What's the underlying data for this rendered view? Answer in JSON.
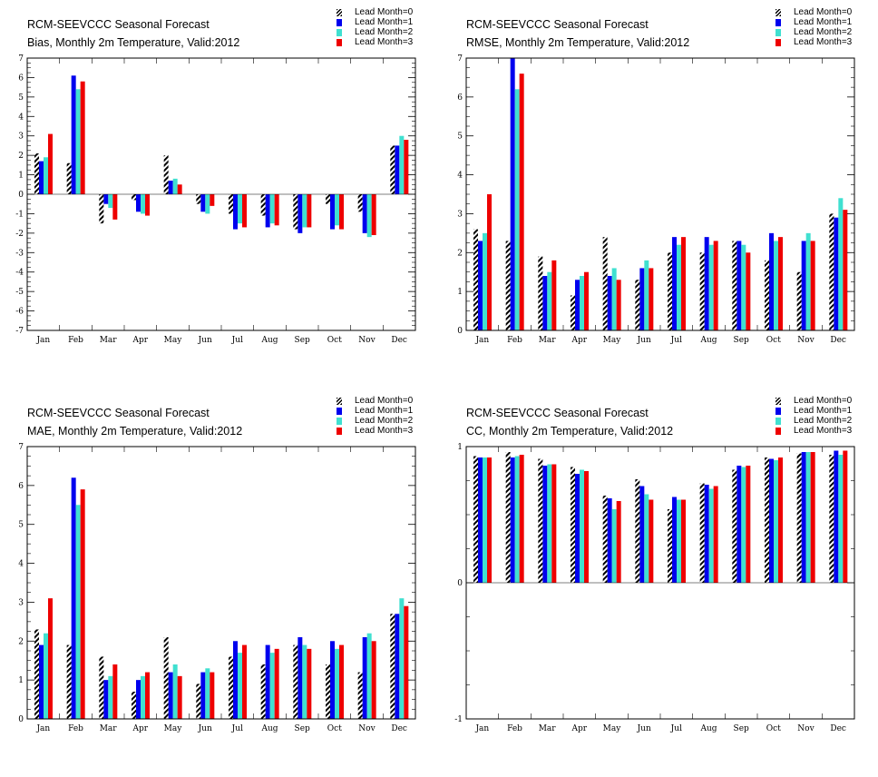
{
  "colors": {
    "lead1": "#0000ee",
    "lead2": "#40e0d0",
    "lead3": "#ee0000"
  },
  "legend": [
    "Lead Month=0",
    "Lead Month=1",
    "Lead Month=2",
    "Lead Month=3"
  ],
  "chart_data": [
    {
      "type": "bar",
      "title": "RCM-SEEVCCC Seasonal Forecast",
      "subtitle": "Bias, Monthly 2m Temperature, Valid:2012",
      "categories": [
        "Jan",
        "Feb",
        "Mar",
        "Apr",
        "May",
        "Jun",
        "Jul",
        "Aug",
        "Sep",
        "Oct",
        "Nov",
        "Dec"
      ],
      "ylim": [
        -7,
        7
      ],
      "yticks": [
        -7,
        -6,
        -5,
        -4,
        -3,
        -2,
        -1,
        0,
        1,
        2,
        3,
        4,
        5,
        6,
        7
      ],
      "ytick_labels": [
        "-7",
        "-6",
        "-5",
        "-4",
        "-3",
        "-2",
        "-1",
        "0",
        "1",
        "2",
        "3",
        "4",
        "5",
        "6",
        "7"
      ],
      "series": [
        {
          "name": "Lead Month=0",
          "values": [
            2.1,
            1.6,
            -1.5,
            -0.3,
            2.0,
            -0.5,
            -1.0,
            -1.1,
            -1.8,
            -0.5,
            -0.9,
            2.5
          ]
        },
        {
          "name": "Lead Month=1",
          "values": [
            1.7,
            6.1,
            -0.5,
            -0.9,
            0.7,
            -0.9,
            -1.8,
            -1.7,
            -2.0,
            -1.8,
            -2.0,
            2.5
          ]
        },
        {
          "name": "Lead Month=2",
          "values": [
            1.9,
            5.4,
            -0.7,
            -1.0,
            0.8,
            -1.0,
            -1.5,
            -1.5,
            -1.7,
            -1.6,
            -2.2,
            3.0
          ]
        },
        {
          "name": "Lead Month=3",
          "values": [
            3.1,
            5.8,
            -1.3,
            -1.1,
            0.5,
            -0.6,
            -1.7,
            -1.6,
            -1.7,
            -1.8,
            -2.1,
            2.8
          ]
        }
      ]
    },
    {
      "type": "bar",
      "title": "RCM-SEEVCCC Seasonal Forecast",
      "subtitle": "RMSE, Monthly 2m Temperature, Valid:2012",
      "categories": [
        "Jan",
        "Feb",
        "Mar",
        "Apr",
        "May",
        "Jun",
        "Jul",
        "Aug",
        "Sep",
        "Oct",
        "Nov",
        "Dec"
      ],
      "ylim": [
        0,
        7
      ],
      "yticks": [
        0,
        1,
        2,
        3,
        4,
        5,
        6,
        7
      ],
      "ytick_labels": [
        "0",
        "1",
        "2",
        "3",
        "4",
        "5",
        "6",
        "7"
      ],
      "series": [
        {
          "name": "Lead Month=0",
          "values": [
            2.6,
            2.3,
            1.9,
            0.9,
            2.4,
            1.3,
            2.0,
            2.0,
            2.3,
            1.8,
            1.5,
            3.0
          ]
        },
        {
          "name": "Lead Month=1",
          "values": [
            2.3,
            7.0,
            1.4,
            1.3,
            1.4,
            1.6,
            2.4,
            2.4,
            2.3,
            2.5,
            2.3,
            2.9
          ]
        },
        {
          "name": "Lead Month=2",
          "values": [
            2.5,
            6.2,
            1.5,
            1.4,
            1.6,
            1.8,
            2.2,
            2.2,
            2.2,
            2.3,
            2.5,
            3.4
          ]
        },
        {
          "name": "Lead Month=3",
          "values": [
            3.5,
            6.6,
            1.8,
            1.5,
            1.3,
            1.6,
            2.4,
            2.3,
            2.0,
            2.4,
            2.3,
            3.1
          ]
        }
      ]
    },
    {
      "type": "bar",
      "title": "RCM-SEEVCCC Seasonal Forecast",
      "subtitle": "MAE, Monthly 2m Temperature, Valid:2012",
      "categories": [
        "Jan",
        "Feb",
        "Mar",
        "Apr",
        "May",
        "Jun",
        "Jul",
        "Aug",
        "Sep",
        "Oct",
        "Nov",
        "Dec"
      ],
      "ylim": [
        0,
        7
      ],
      "yticks": [
        0,
        1,
        2,
        3,
        4,
        5,
        6,
        7
      ],
      "ytick_labels": [
        "0",
        "1",
        "2",
        "3",
        "4",
        "5",
        "6",
        "7"
      ],
      "series": [
        {
          "name": "Lead Month=0",
          "values": [
            2.3,
            1.9,
            1.6,
            0.7,
            2.1,
            0.9,
            1.6,
            1.4,
            1.9,
            1.4,
            1.2,
            2.7
          ]
        },
        {
          "name": "Lead Month=1",
          "values": [
            1.9,
            6.2,
            1.0,
            1.0,
            1.2,
            1.2,
            2.0,
            1.9,
            2.1,
            2.0,
            2.1,
            2.7
          ]
        },
        {
          "name": "Lead Month=2",
          "values": [
            2.2,
            5.5,
            1.1,
            1.1,
            1.4,
            1.3,
            1.7,
            1.7,
            1.9,
            1.8,
            2.2,
            3.1
          ]
        },
        {
          "name": "Lead Month=3",
          "values": [
            3.1,
            5.9,
            1.4,
            1.2,
            1.1,
            1.2,
            1.9,
            1.8,
            1.8,
            1.9,
            2.0,
            2.9
          ]
        }
      ]
    },
    {
      "type": "bar",
      "title": "RCM-SEEVCCC Seasonal Forecast",
      "subtitle": "CC, Monthly 2m Temperature, Valid:2012",
      "categories": [
        "Jan",
        "Feb",
        "Mar",
        "Apr",
        "May",
        "Jun",
        "Jul",
        "Aug",
        "Sep",
        "Oct",
        "Nov",
        "Dec"
      ],
      "ylim": [
        -1,
        1
      ],
      "yticks": [
        -1,
        0,
        1
      ],
      "ytick_labels": [
        "-1",
        "0",
        "1"
      ],
      "series": [
        {
          "name": "Lead Month=0",
          "values": [
            0.93,
            0.96,
            0.91,
            0.85,
            0.64,
            0.76,
            0.54,
            0.73,
            0.83,
            0.92,
            0.95,
            0.94
          ]
        },
        {
          "name": "Lead Month=1",
          "values": [
            0.92,
            0.92,
            0.86,
            0.8,
            0.62,
            0.71,
            0.63,
            0.72,
            0.86,
            0.91,
            0.96,
            0.97
          ]
        },
        {
          "name": "Lead Month=2",
          "values": [
            0.92,
            0.93,
            0.87,
            0.83,
            0.54,
            0.65,
            0.61,
            0.69,
            0.85,
            0.9,
            0.96,
            0.94
          ]
        },
        {
          "name": "Lead Month=3",
          "values": [
            0.92,
            0.94,
            0.87,
            0.82,
            0.6,
            0.61,
            0.61,
            0.71,
            0.86,
            0.92,
            0.96,
            0.97
          ]
        }
      ]
    }
  ]
}
